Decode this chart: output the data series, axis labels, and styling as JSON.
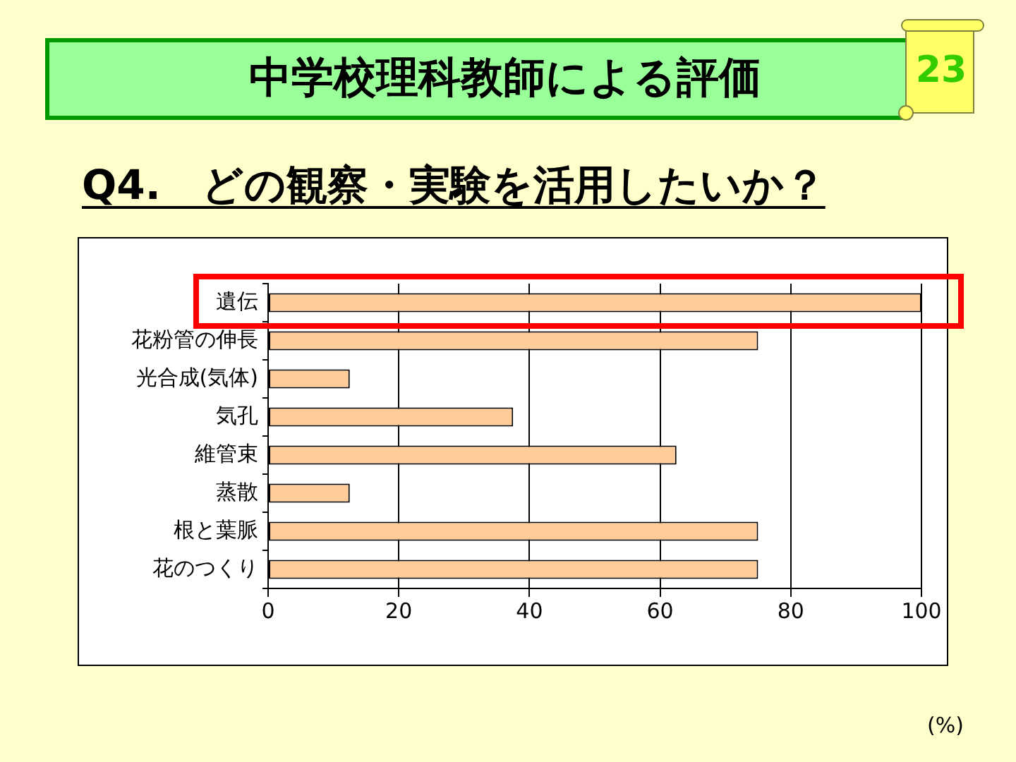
{
  "chart_data": {
    "type": "bar",
    "orientation": "horizontal",
    "title": "中学校理科教師による評価",
    "subtitle": "Q4.　どの観察・実験を活用したいか？",
    "xlabel": "(%)",
    "annotations": [
      "23"
    ],
    "categories": [
      "遺伝",
      "花粉管の伸長",
      "光合成(気体)",
      "気孔",
      "維管束",
      "蒸散",
      "根と葉脈",
      "花のつくり"
    ],
    "values": [
      100,
      75,
      12.5,
      37.5,
      62.5,
      12.5,
      75,
      75
    ],
    "color": "#ffcc99",
    "xlim": [
      0,
      100
    ],
    "xticks": [
      0,
      20,
      40,
      60,
      80,
      100
    ],
    "grid": "x"
  }
}
